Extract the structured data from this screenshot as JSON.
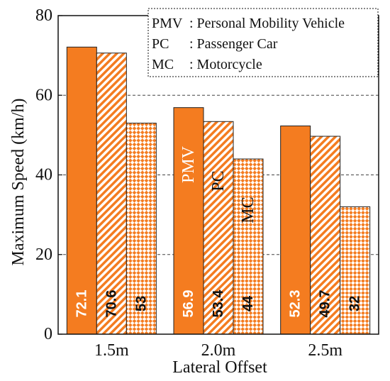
{
  "chart_data": {
    "type": "bar",
    "title": "",
    "xlabel": "Lateral Offset",
    "ylabel": "Maximum Speed (km/h)",
    "ylim": [
      0,
      80
    ],
    "yticks": [
      "0",
      "20",
      "40",
      "60",
      "80"
    ],
    "categories": [
      "1.5m",
      "2.0m",
      "2.5m"
    ],
    "grid": "horizontal dashed",
    "legend_position": "top-right",
    "legend": [
      {
        "abbr": "PMV",
        "text": ": Personal Mobility Vehicle"
      },
      {
        "abbr": "PC",
        "text": ": Passenger Car"
      },
      {
        "abbr": "MC",
        "text": ": Motorcycle"
      }
    ],
    "series": [
      {
        "name": "PMV",
        "pattern": "solid",
        "values": [
          72.1,
          56.9,
          52.3
        ],
        "labels": [
          "72.1",
          "56.9",
          "52.3"
        ]
      },
      {
        "name": "PC",
        "pattern": "diagonal-hatch",
        "values": [
          70.6,
          53.4,
          49.7
        ],
        "labels": [
          "70.6",
          "53.4",
          "49.7"
        ]
      },
      {
        "name": "MC",
        "pattern": "checkered",
        "values": [
          53,
          44,
          32
        ],
        "labels": [
          "53",
          "44",
          "32"
        ]
      }
    ],
    "in_bar_series_labels": [
      "PMV",
      "PC",
      "MC"
    ],
    "colors": {
      "primary": "#f47c20",
      "edge": "#222222"
    }
  }
}
